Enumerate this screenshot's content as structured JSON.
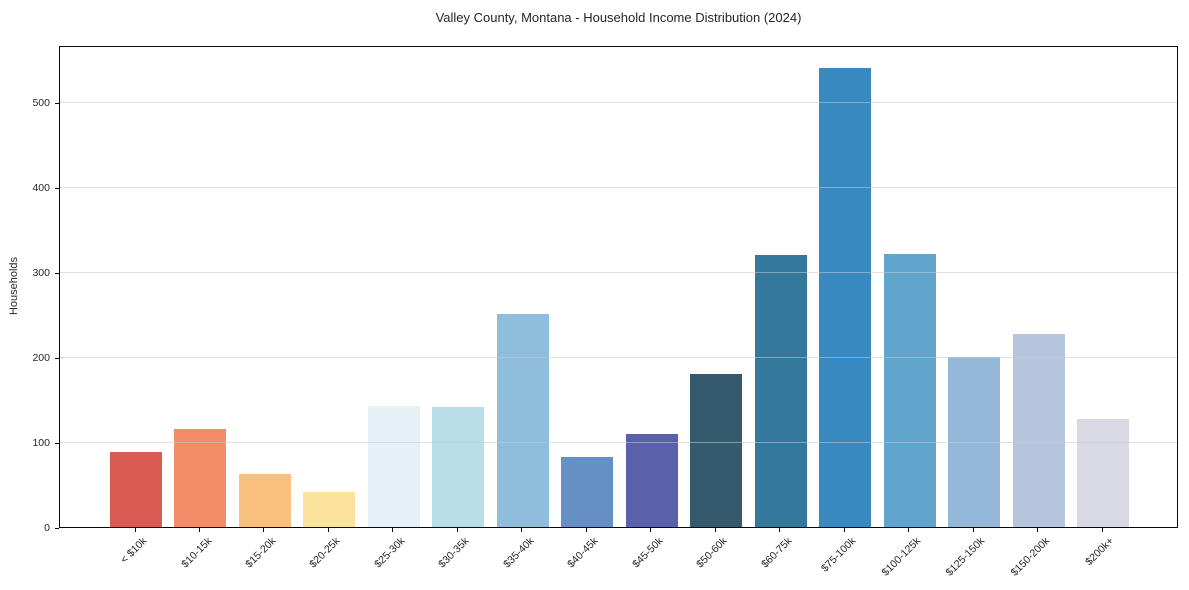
{
  "chart_data": {
    "type": "bar",
    "title": "Valley County, Montana - Household Income Distribution (2024)",
    "xlabel": "",
    "ylabel": "Households",
    "categories": [
      "< $10k",
      "$10-15k",
      "$15-20k",
      "$20-25k",
      "$25-30k",
      "$30-35k",
      "$35-40k",
      "$40-45k",
      "$45-50k",
      "$50-60k",
      "$60-75k",
      "$75-100k",
      "$100-125k",
      "$125-150k",
      "$150-200k",
      "$200k+"
    ],
    "values": [
      88,
      115,
      62,
      41,
      143,
      142,
      251,
      82,
      110,
      180,
      320,
      541,
      322,
      200,
      228,
      127
    ],
    "bar_colors": [
      "#d95b52",
      "#f28b68",
      "#fac07e",
      "#fce39d",
      "#e5f1f6",
      "#b9dde9",
      "#8fbddc",
      "#6590c5",
      "#5b60aa",
      "#355a6d",
      "#34789e",
      "#3889c0",
      "#5fa5cd",
      "#93b8da",
      "#b6c5de",
      "#d8d9e4"
    ],
    "ylim": [
      0,
      568
    ],
    "yticks": [
      0,
      100,
      200,
      300,
      400,
      500
    ],
    "grid": "horizontal-only",
    "legend": "none",
    "background_color": "#ffffff",
    "axis_color": "#0a0a0a",
    "text_color": "#262626"
  }
}
